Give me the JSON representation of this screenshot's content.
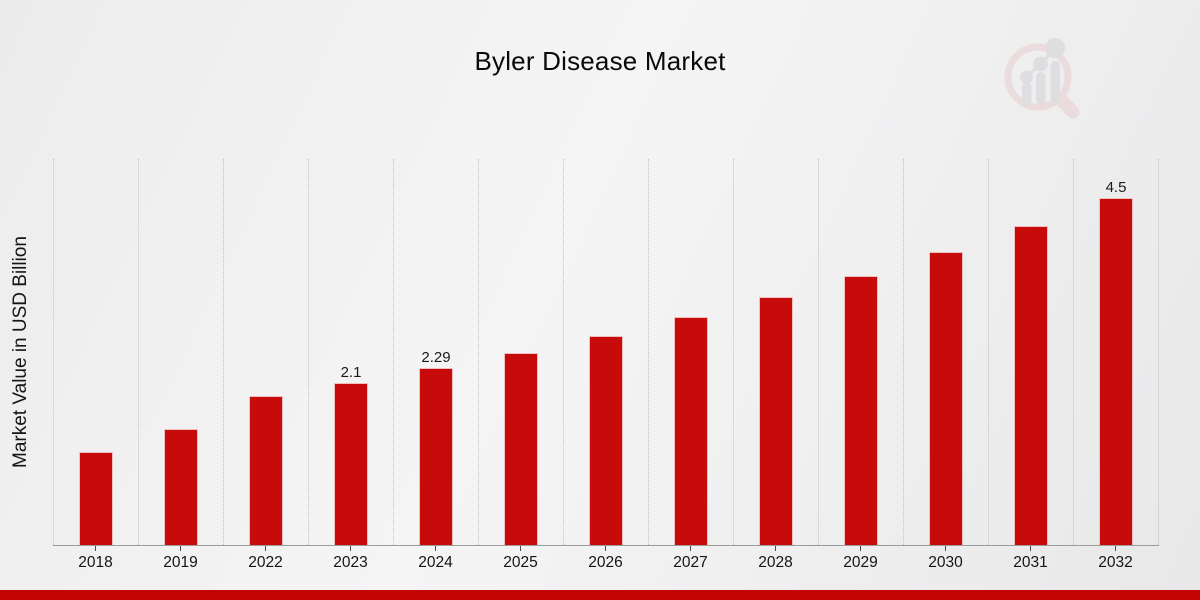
{
  "title": "Byler Disease Market",
  "y_axis_label": "Market Value in USD Billion",
  "chart_data": {
    "type": "bar",
    "title": "Byler Disease Market",
    "xlabel": "",
    "ylabel": "Market Value in USD Billion",
    "categories": [
      "2018",
      "2019",
      "2022",
      "2023",
      "2024",
      "2025",
      "2026",
      "2027",
      "2028",
      "2029",
      "2030",
      "2031",
      "2032"
    ],
    "values": [
      1.2,
      1.5,
      1.93,
      2.1,
      2.29,
      2.49,
      2.71,
      2.95,
      3.21,
      3.49,
      3.8,
      4.13,
      4.5
    ],
    "data_labels": {
      "2023": "2.1",
      "2024": "2.29",
      "2032": "4.5"
    },
    "ylim": [
      0,
      5
    ],
    "grid": "vertical dotted column separators",
    "legend": "none",
    "bar_color": "#c70b0b"
  },
  "colors": {
    "bar": "#c70b0b",
    "bottom_strip": "#c40303",
    "axis_line": "#9b9b9b",
    "gridline": "#c2c2c2",
    "text": "#111111",
    "watermark_ring": "#e9cdce",
    "watermark_bars": "#d2d2d6"
  }
}
